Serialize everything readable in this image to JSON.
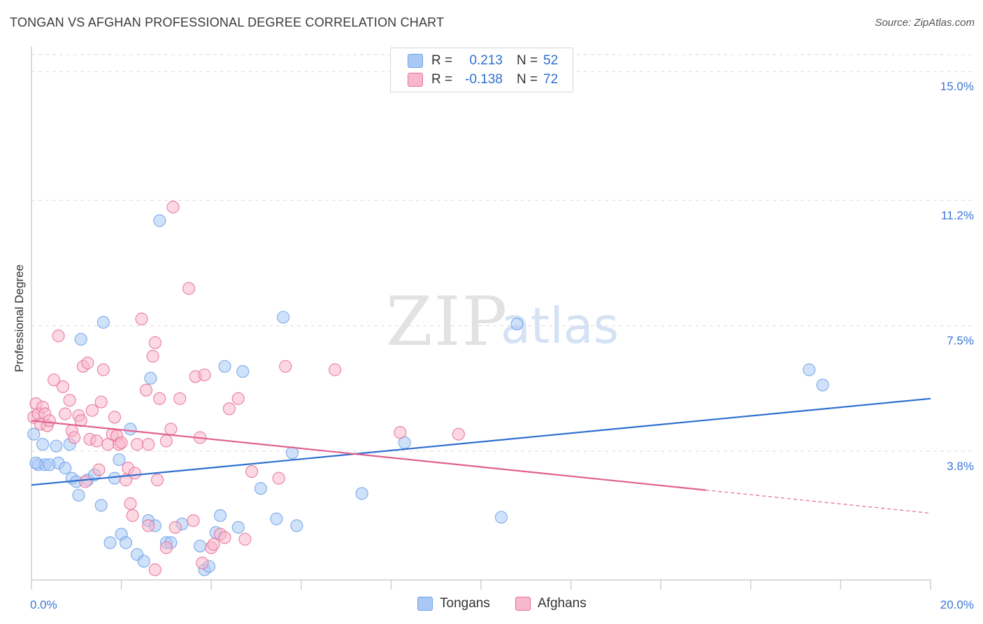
{
  "header": {
    "title": "TONGAN VS AFGHAN PROFESSIONAL DEGREE CORRELATION CHART",
    "source": "Source: ZipAtlas.com"
  },
  "watermark": {
    "zip": "ZIP",
    "atlas": "atlas"
  },
  "legend_top": {
    "rows": [
      {
        "r_key": "R =",
        "r_value": "0.213",
        "n_key": "N =",
        "n_value": "52",
        "color": "#a9c8f5"
      },
      {
        "r_key": "R =",
        "r_value": "-0.138",
        "n_key": "N =",
        "n_value": "72",
        "color": "#f7b8cb"
      }
    ]
  },
  "legend_bottom": {
    "items": [
      {
        "label": "Tongans",
        "color": "#a9c8f5"
      },
      {
        "label": "Afghans",
        "color": "#f7b8cb"
      }
    ]
  },
  "chart_data": {
    "type": "scatter",
    "title": "TONGAN VS AFGHAN PROFESSIONAL DEGREE CORRELATION CHART",
    "xlabel": "",
    "ylabel": "Professional Degree",
    "xlim": [
      0,
      20
    ],
    "ylim": [
      0,
      15.5
    ],
    "x_tick_labels": [
      "0.0%",
      "20.0%"
    ],
    "y_ticks": [
      {
        "value": 3.8,
        "label": "3.8%"
      },
      {
        "value": 7.5,
        "label": "7.5%"
      },
      {
        "value": 11.2,
        "label": "11.2%"
      },
      {
        "value": 15.0,
        "label": "15.0%"
      }
    ],
    "grid": true,
    "legend_position": "top-center",
    "series": [
      {
        "name": "Tongans",
        "color": "#6fa3e8",
        "fill": "#a9c8f5",
        "trend": {
          "x": [
            0,
            20
          ],
          "y": [
            2.8,
            5.35
          ]
        },
        "points": [
          [
            0.05,
            4.3
          ],
          [
            0.15,
            3.4
          ],
          [
            0.25,
            4.0
          ],
          [
            0.3,
            3.4
          ],
          [
            0.4,
            3.4
          ],
          [
            0.55,
            3.95
          ],
          [
            0.6,
            3.45
          ],
          [
            0.75,
            3.3
          ],
          [
            0.85,
            4.0
          ],
          [
            0.9,
            3.0
          ],
          [
            1.0,
            2.9
          ],
          [
            1.05,
            2.5
          ],
          [
            1.1,
            7.1
          ],
          [
            1.25,
            2.95
          ],
          [
            1.4,
            3.1
          ],
          [
            1.55,
            2.2
          ],
          [
            1.6,
            7.6
          ],
          [
            1.75,
            1.1
          ],
          [
            1.85,
            3.0
          ],
          [
            1.95,
            3.55
          ],
          [
            2.0,
            1.35
          ],
          [
            2.1,
            1.1
          ],
          [
            2.2,
            4.45
          ],
          [
            2.35,
            0.75
          ],
          [
            2.5,
            0.55
          ],
          [
            2.6,
            1.75
          ],
          [
            2.65,
            5.95
          ],
          [
            2.75,
            1.6
          ],
          [
            2.85,
            10.6
          ],
          [
            3.0,
            1.1
          ],
          [
            3.1,
            1.1
          ],
          [
            3.35,
            1.65
          ],
          [
            3.75,
            1.0
          ],
          [
            3.85,
            0.3
          ],
          [
            3.95,
            0.4
          ],
          [
            4.1,
            1.4
          ],
          [
            4.2,
            1.9
          ],
          [
            4.3,
            6.3
          ],
          [
            4.6,
            1.55
          ],
          [
            4.7,
            6.15
          ],
          [
            5.1,
            2.7
          ],
          [
            5.45,
            1.8
          ],
          [
            5.6,
            7.75
          ],
          [
            5.8,
            3.75
          ],
          [
            5.9,
            1.6
          ],
          [
            7.35,
            2.55
          ],
          [
            8.3,
            4.05
          ],
          [
            10.45,
            1.85
          ],
          [
            10.8,
            7.55
          ],
          [
            17.3,
            6.2
          ],
          [
            17.6,
            5.75
          ],
          [
            0.1,
            3.45
          ]
        ]
      },
      {
        "name": "Afghans",
        "color": "#e8709a",
        "fill": "#f7b8cb",
        "trend": {
          "x": [
            0,
            15
          ],
          "y": [
            4.7,
            2.65
          ]
        },
        "trend_dashed": {
          "x": [
            15,
            20
          ],
          "y": [
            2.65,
            1.97
          ]
        },
        "points": [
          [
            0.05,
            4.8
          ],
          [
            0.1,
            5.2
          ],
          [
            0.15,
            4.9
          ],
          [
            0.2,
            4.6
          ],
          [
            0.25,
            5.1
          ],
          [
            0.3,
            4.9
          ],
          [
            0.35,
            4.55
          ],
          [
            0.4,
            4.7
          ],
          [
            0.5,
            5.9
          ],
          [
            0.6,
            7.2
          ],
          [
            0.7,
            5.7
          ],
          [
            0.75,
            4.9
          ],
          [
            0.85,
            5.3
          ],
          [
            0.9,
            4.4
          ],
          [
            0.95,
            4.2
          ],
          [
            1.05,
            4.85
          ],
          [
            1.1,
            4.7
          ],
          [
            1.15,
            6.3
          ],
          [
            1.25,
            6.4
          ],
          [
            1.3,
            4.15
          ],
          [
            1.35,
            5.0
          ],
          [
            1.45,
            4.1
          ],
          [
            1.5,
            3.25
          ],
          [
            1.55,
            5.25
          ],
          [
            1.6,
            6.2
          ],
          [
            1.7,
            4.0
          ],
          [
            1.8,
            4.3
          ],
          [
            1.85,
            4.8
          ],
          [
            1.9,
            4.25
          ],
          [
            1.95,
            4.0
          ],
          [
            2.0,
            4.05
          ],
          [
            2.1,
            2.95
          ],
          [
            2.15,
            3.3
          ],
          [
            2.2,
            2.25
          ],
          [
            2.25,
            1.9
          ],
          [
            2.3,
            3.15
          ],
          [
            2.35,
            4.0
          ],
          [
            2.45,
            7.7
          ],
          [
            2.55,
            5.6
          ],
          [
            2.6,
            4.0
          ],
          [
            2.7,
            6.6
          ],
          [
            2.75,
            7.0
          ],
          [
            2.8,
            2.95
          ],
          [
            2.85,
            5.35
          ],
          [
            3.0,
            4.1
          ],
          [
            3.1,
            4.45
          ],
          [
            3.15,
            11.0
          ],
          [
            3.2,
            1.55
          ],
          [
            3.3,
            5.35
          ],
          [
            3.5,
            8.6
          ],
          [
            3.6,
            1.75
          ],
          [
            3.65,
            6.0
          ],
          [
            3.75,
            4.2
          ],
          [
            3.85,
            6.05
          ],
          [
            4.0,
            0.95
          ],
          [
            4.05,
            1.05
          ],
          [
            4.2,
            1.35
          ],
          [
            4.3,
            1.25
          ],
          [
            4.4,
            5.05
          ],
          [
            4.6,
            5.35
          ],
          [
            4.75,
            1.2
          ],
          [
            4.9,
            3.2
          ],
          [
            5.5,
            3.0
          ],
          [
            5.65,
            6.3
          ],
          [
            6.75,
            6.2
          ],
          [
            8.2,
            4.35
          ],
          [
            9.5,
            4.3
          ],
          [
            2.6,
            1.6
          ],
          [
            3.0,
            0.95
          ],
          [
            3.8,
            0.5
          ],
          [
            2.75,
            0.3
          ],
          [
            1.2,
            2.9
          ]
        ]
      }
    ]
  }
}
